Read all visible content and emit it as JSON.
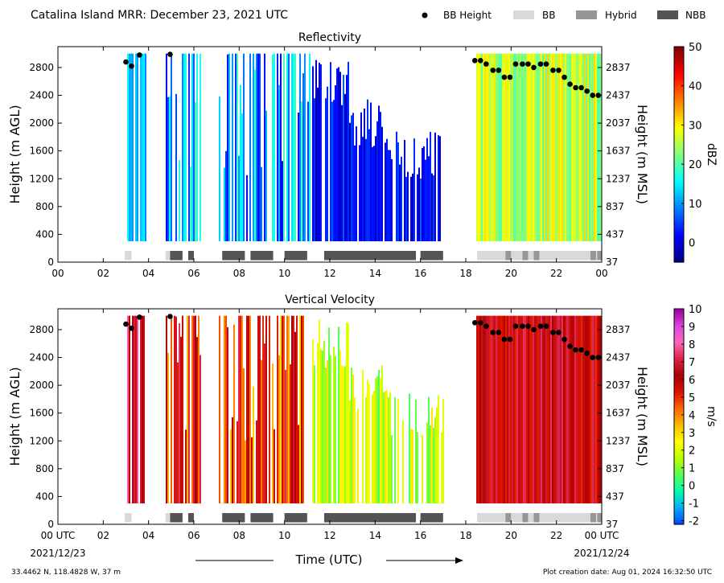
{
  "figure": {
    "title": "Catalina Island MRR:  December 23, 2021 UTC",
    "legend": [
      {
        "label": "BB Height",
        "kind": "dot",
        "color": "#000000"
      },
      {
        "label": "BB",
        "kind": "bar",
        "color": "#d9d9d9"
      },
      {
        "label": "Hybrid",
        "kind": "bar",
        "color": "#969696"
      },
      {
        "label": "NBB",
        "kind": "bar",
        "color": "#545454"
      }
    ],
    "xlabel": "Time (UTC)",
    "start_date": "2021/12/23",
    "end_date": "2021/12/24",
    "location": "33.4462 N, 118.4828 W, 37 m",
    "creation": "Plot creation date: Aug 01, 2024 16:32:50 UTC"
  },
  "chart_data": [
    {
      "type": "heatmap",
      "title": "Reflectivity",
      "xlim": [
        0,
        24
      ],
      "ylim": [
        0,
        3100
      ],
      "x_ticks": [
        "00",
        "02",
        "04",
        "06",
        "08",
        "10",
        "12",
        "14",
        "16",
        "18",
        "20",
        "22",
        "00"
      ],
      "x_ticks_end": [
        "00 UTC",
        "02",
        "04",
        "06",
        "08",
        "10",
        "12",
        "14",
        "16",
        "18",
        "20",
        "22",
        "00 UTC"
      ],
      "ylabel_left": "Height (m AGL)",
      "yticks_left": [
        0,
        400,
        800,
        1200,
        1600,
        2000,
        2400,
        2800
      ],
      "ylabel_right": "Height (m MSL)",
      "yticks_right": [
        37,
        437,
        837,
        1237,
        1637,
        2037,
        2437,
        2837
      ],
      "colorbar": {
        "label": "dBZ",
        "range": [
          -5,
          50
        ],
        "ticks": [
          0,
          10,
          20,
          30,
          40,
          50
        ],
        "colors": [
          "#00007f",
          "#0000ff",
          "#007fff",
          "#00ffff",
          "#7fff7f",
          "#ffff00",
          "#ff7f00",
          "#ff0000",
          "#7f0000"
        ]
      },
      "bb_height": {
        "x": [
          3.0,
          3.25,
          3.6,
          4.95,
          18.4,
          18.65,
          18.9,
          19.2,
          19.45,
          19.7,
          19.95,
          20.2,
          20.5,
          20.75,
          21.0,
          21.3,
          21.55,
          21.85,
          22.1,
          22.35,
          22.6,
          22.85,
          23.1,
          23.35,
          23.6,
          23.85
        ],
        "y": [
          2880,
          2820,
          2980,
          2990,
          2900,
          2900,
          2850,
          2760,
          2760,
          2660,
          2660,
          2850,
          2850,
          2850,
          2800,
          2850,
          2850,
          2760,
          2760,
          2660,
          2560,
          2510,
          2510,
          2460,
          2400,
          2400
        ]
      }
    },
    {
      "type": "heatmap",
      "title": "Vertical Velocity",
      "xlim": [
        0,
        24
      ],
      "ylim": [
        0,
        3100
      ],
      "x_ticks": [
        "00 UTC",
        "02",
        "04",
        "06",
        "08",
        "10",
        "12",
        "14",
        "16",
        "18",
        "20",
        "22",
        "00 UTC"
      ],
      "ylabel_left": "Height (m AGL)",
      "yticks_left": [
        0,
        400,
        800,
        1200,
        1600,
        2000,
        2400,
        2800
      ],
      "ylabel_right": "Height (m MSL)",
      "yticks_right": [
        37,
        437,
        837,
        1237,
        1637,
        2037,
        2437,
        2837
      ],
      "colorbar": {
        "label": "m/s",
        "range": [
          -2.2,
          10
        ],
        "ticks": [
          -2,
          -1,
          0,
          1,
          2,
          3,
          4,
          5,
          6,
          7,
          8,
          9,
          10
        ],
        "colors": [
          "#0044ff",
          "#00aaff",
          "#00ffaa",
          "#55ff55",
          "#bbff00",
          "#ffff00",
          "#ffbb00",
          "#ff6600",
          "#dd1100",
          "#aa0000",
          "#dd2244",
          "#ff66bb",
          "#dd44dd",
          "#990099"
        ]
      },
      "bb_height": {
        "x": [
          3.0,
          3.25,
          3.6,
          4.95,
          18.4,
          18.65,
          18.9,
          19.2,
          19.45,
          19.7,
          19.95,
          20.2,
          20.5,
          20.75,
          21.0,
          21.3,
          21.55,
          21.85,
          22.1,
          22.35,
          22.6,
          22.85,
          23.1,
          23.35,
          23.6,
          23.85
        ],
        "y": [
          2880,
          2820,
          2980,
          2990,
          2900,
          2900,
          2850,
          2760,
          2760,
          2660,
          2660,
          2850,
          2850,
          2850,
          2800,
          2850,
          2850,
          2760,
          2760,
          2660,
          2560,
          2510,
          2510,
          2460,
          2400,
          2400
        ]
      }
    }
  ],
  "classification": [
    {
      "start": 2.95,
      "end": 3.25,
      "class": "BB"
    },
    {
      "start": 4.75,
      "end": 4.95,
      "class": "BB"
    },
    {
      "start": 4.95,
      "end": 5.5,
      "class": "NBB"
    },
    {
      "start": 5.75,
      "end": 6.0,
      "class": "NBB"
    },
    {
      "start": 7.25,
      "end": 8.25,
      "class": "NBB"
    },
    {
      "start": 8.5,
      "end": 9.5,
      "class": "NBB"
    },
    {
      "start": 10.0,
      "end": 11.0,
      "class": "NBB"
    },
    {
      "start": 11.75,
      "end": 15.8,
      "class": "NBB"
    },
    {
      "start": 16.0,
      "end": 17.0,
      "class": "NBB"
    },
    {
      "start": 18.5,
      "end": 19.75,
      "class": "BB"
    },
    {
      "start": 19.75,
      "end": 20.0,
      "class": "Hybrid"
    },
    {
      "start": 20.0,
      "end": 20.5,
      "class": "BB"
    },
    {
      "start": 20.5,
      "end": 20.75,
      "class": "Hybrid"
    },
    {
      "start": 20.75,
      "end": 21.0,
      "class": "BB"
    },
    {
      "start": 21.0,
      "end": 21.25,
      "class": "Hybrid"
    },
    {
      "start": 21.25,
      "end": 23.5,
      "class": "BB"
    },
    {
      "start": 23.5,
      "end": 23.75,
      "class": "Hybrid"
    },
    {
      "start": 23.75,
      "end": 23.8,
      "class": "BB"
    },
    {
      "start": 23.8,
      "end": 24.0,
      "class": "Hybrid"
    }
  ]
}
